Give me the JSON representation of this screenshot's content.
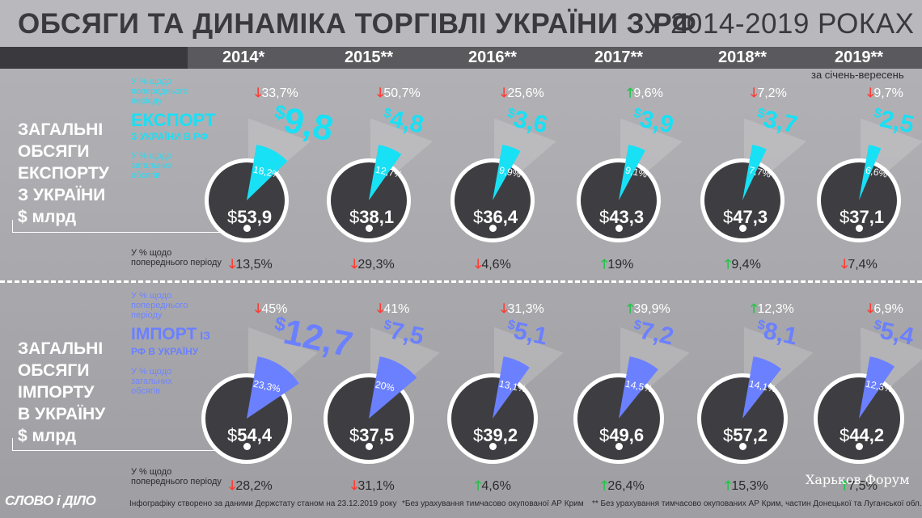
{
  "title_bold": "ОБСЯГИ ТА ДИНАМІКА ТОРГІВЛІ УКРАЇНИ З РФ",
  "title_light": "У 2014-2019 РОКАХ",
  "period_note": "за січень-вересень",
  "export_section": {
    "title": "ЗАГАЛЬНІ\nОБСЯГИ\nЕКСПОРТУ\nЗ УКРАЇНИ\n$ млрд",
    "label_prev": "У % щодо\nпопереднього\nперіоду",
    "heading": "ЕКСПОРТ",
    "subheading": "З УКРАЇНИ В РФ",
    "label_share": "У % щодо\nзагальних\nобсягів",
    "label_total_prev": "У % щодо\nпопереднього періоду"
  },
  "import_section": {
    "title": "ЗАГАЛЬНІ\nОБСЯГИ\nІМПОРТУ\nВ УКРАЇНУ\n$ млрд",
    "label_prev": "У % щодо\nпопереднього\nперіоду",
    "heading_main": "ІМПОРТ",
    "heading_small": " ІЗ",
    "subheading": "РФ В УКРАЇНУ",
    "label_share": "У % щодо\nзагальних\nобсягів",
    "label_total_prev": "У % щодо\nпопереднього періоду"
  },
  "years": [
    {
      "year": "2014*",
      "export": {
        "prev": "33,7%",
        "prev_dir": "down",
        "value": "9,8",
        "share": "18,2%",
        "share_num": 18.2,
        "total": "53,9",
        "total_prev": "13,5%",
        "total_dir": "down"
      },
      "import": {
        "prev": "45%",
        "prev_dir": "down",
        "value": "12,7",
        "share": "23,3%",
        "share_num": 23.3,
        "total": "54,4",
        "total_prev": "28,2%",
        "total_dir": "down"
      }
    },
    {
      "year": "2015**",
      "export": {
        "prev": "50,7%",
        "prev_dir": "down",
        "value": "4,8",
        "share": "12,7%",
        "share_num": 12.7,
        "total": "38,1",
        "total_prev": "29,3%",
        "total_dir": "down"
      },
      "import": {
        "prev": "41%",
        "prev_dir": "down",
        "value": "7,5",
        "share": "20%",
        "share_num": 20,
        "total": "37,5",
        "total_prev": "31,1%",
        "total_dir": "down"
      }
    },
    {
      "year": "2016**",
      "export": {
        "prev": "25,6%",
        "prev_dir": "down",
        "value": "3,6",
        "share": "9,9%",
        "share_num": 9.9,
        "total": "36,4",
        "total_prev": "4,6%",
        "total_dir": "down"
      },
      "import": {
        "prev": "31,3%",
        "prev_dir": "down",
        "value": "5,1",
        "share": "13,1%",
        "share_num": 13.1,
        "total": "39,2",
        "total_prev": "4,6%",
        "total_dir": "up"
      }
    },
    {
      "year": "2017**",
      "export": {
        "prev": "9,6%",
        "prev_dir": "up",
        "value": "3,9",
        "share": "9,1%",
        "share_num": 9.1,
        "total": "43,3",
        "total_prev": "19%",
        "total_dir": "up"
      },
      "import": {
        "prev": "39,9%",
        "prev_dir": "up",
        "value": "7,2",
        "share": "14,5%",
        "share_num": 14.5,
        "total": "49,6",
        "total_prev": "26,4%",
        "total_dir": "up"
      }
    },
    {
      "year": "2018**",
      "export": {
        "prev": "7,2%",
        "prev_dir": "down",
        "value": "3,7",
        "share": "7,7%",
        "share_num": 7.7,
        "total": "47,3",
        "total_prev": "9,4%",
        "total_dir": "up"
      },
      "import": {
        "prev": "12,3%",
        "prev_dir": "up",
        "value": "8,1",
        "share": "14,1%",
        "share_num": 14.1,
        "total": "57,2",
        "total_prev": "15,3%",
        "total_dir": "up"
      }
    },
    {
      "year": "2019**",
      "export": {
        "prev": "9,7%",
        "prev_dir": "down",
        "value": "2,5",
        "share": "6,6%",
        "share_num": 6.6,
        "total": "37,1",
        "total_prev": "7,4%",
        "total_dir": "down"
      },
      "import": {
        "prev": "6,9%",
        "prev_dir": "down",
        "value": "5,4",
        "share": "12,3%",
        "share_num": 12.3,
        "total": "44,2",
        "total_prev": "7,5%",
        "total_dir": "up"
      }
    }
  ],
  "currency_symbol": "$",
  "arrow_down": "🡓",
  "arrow_up": "🡑",
  "footer": {
    "logo": "СЛОВО і ДІЛО",
    "source": "Інфографіку створено за даними Держстату станом на 23.12.2019 року",
    "note1": "*Без урахування тимчасово окупованої АР Крим",
    "note2": "** Без урахування тимчасово окупованих АР Крим, частин Донецької та Луганської обл.",
    "watermark": "Харьков Форум"
  },
  "colors": {
    "export": "#18e0f5",
    "import": "#6b80ff",
    "down": "#ff3b30",
    "up": "#27c24c"
  }
}
